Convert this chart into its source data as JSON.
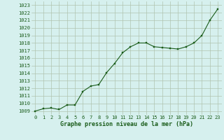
{
  "all_x": [
    0,
    1,
    2,
    3,
    4,
    5,
    6,
    7,
    8,
    9,
    10,
    11,
    12,
    13,
    14,
    15,
    16,
    17,
    18,
    19,
    20,
    21,
    22,
    23
  ],
  "all_y": [
    1009.0,
    1009.3,
    1009.4,
    1009.2,
    1009.8,
    1009.8,
    1011.6,
    1012.3,
    1012.5,
    1014.1,
    1015.3,
    1016.7,
    1017.5,
    1018.0,
    1018.0,
    1017.5,
    1017.4,
    1017.3,
    1017.2,
    1017.5,
    1018.0,
    1019.0,
    1021.0,
    1022.5
  ],
  "line_color": "#1a5c1a",
  "marker_color": "#1a5c1a",
  "grid_color": "#b0c4b0",
  "plot_bg": "#d6f0ee",
  "fig_bg": "#d6f0ee",
  "xlabel": "Graphe pression niveau de la mer (hPa)",
  "ylim_min": 1008.5,
  "ylim_max": 1023.5,
  "xlim_min": -0.5,
  "xlim_max": 23.5,
  "yticks": [
    1009,
    1010,
    1011,
    1012,
    1013,
    1014,
    1015,
    1016,
    1017,
    1018,
    1019,
    1020,
    1021,
    1022,
    1023
  ],
  "xticks": [
    0,
    1,
    2,
    3,
    4,
    5,
    6,
    7,
    8,
    9,
    10,
    11,
    12,
    13,
    14,
    15,
    16,
    17,
    18,
    19,
    20,
    21,
    22,
    23
  ],
  "xlabel_fontsize": 6.0,
  "tick_fontsize": 5.0,
  "xlabel_color": "#1a5c1a",
  "tick_color": "#1a5c1a",
  "marker_size": 2.0,
  "line_width": 0.8
}
